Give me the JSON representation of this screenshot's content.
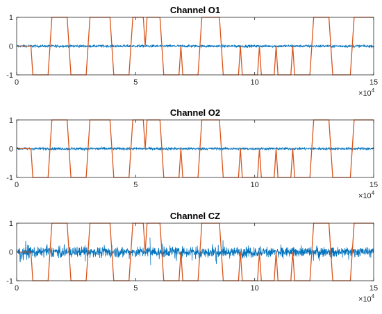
{
  "chart_data": [
    {
      "type": "line",
      "title": "Channel O1",
      "xlim": [
        0,
        15
      ],
      "ylim": [
        -1,
        1
      ],
      "x_ticks": [
        "0",
        "5",
        "10",
        "15"
      ],
      "y_ticks": [
        "1",
        "0",
        "-1"
      ],
      "x_exponent": {
        "base": "10",
        "power": "4"
      },
      "grid": false,
      "series": [
        {
          "color": "#0072BD",
          "noise_amplitude": 0.05,
          "values": [
            0,
            0
          ]
        },
        {
          "color": "#D95319",
          "x_transitions": [
            0,
            0.6,
            1.4,
            2.2,
            3.0,
            4.0,
            4.8,
            5.4,
            6.1,
            6.9,
            7.7,
            8.6,
            9.4,
            10.2,
            10.9,
            11.6,
            12.4,
            13.2,
            14.1,
            15.0
          ],
          "levels": [
            0,
            -1,
            1,
            -1,
            1,
            -1,
            1,
            1,
            -1,
            -1,
            1,
            -1,
            -1,
            -1,
            -1,
            -1,
            1,
            -1,
            1
          ]
        }
      ]
    },
    {
      "type": "line",
      "title": "Channel O2",
      "xlim": [
        0,
        15
      ],
      "ylim": [
        -1,
        1
      ],
      "x_ticks": [
        "0",
        "5",
        "10",
        "15"
      ],
      "y_ticks": [
        "1",
        "0",
        "-1"
      ],
      "x_exponent": {
        "base": "10",
        "power": "4"
      },
      "grid": false,
      "series": [
        {
          "color": "#0072BD",
          "noise_amplitude": 0.05,
          "values": [
            0,
            0
          ]
        },
        {
          "color": "#D95319",
          "x_transitions": [
            0,
            0.6,
            1.4,
            2.2,
            3.0,
            4.0,
            4.8,
            5.4,
            6.1,
            6.9,
            7.7,
            8.6,
            9.4,
            10.2,
            10.9,
            11.6,
            12.4,
            13.2,
            14.1,
            15.0
          ],
          "levels": [
            0,
            -1,
            1,
            -1,
            1,
            -1,
            1,
            1,
            -1,
            -1,
            1,
            -1,
            -1,
            -1,
            -1,
            -1,
            1,
            -1,
            1
          ]
        }
      ]
    },
    {
      "type": "line",
      "title": "Channel CZ",
      "xlim": [
        0,
        15
      ],
      "ylim": [
        -1,
        1
      ],
      "x_ticks": [
        "0",
        "5",
        "10",
        "15"
      ],
      "y_ticks": [
        "1",
        "0",
        "-1"
      ],
      "x_exponent": {
        "base": "10",
        "power": "4"
      },
      "grid": false,
      "series": [
        {
          "color": "#0072BD",
          "noise_amplitude": 0.2,
          "spike_x": 5.6,
          "spike_range": [
            -0.45,
            0.5
          ],
          "values": [
            0,
            0
          ]
        },
        {
          "color": "#D95319",
          "x_transitions": [
            0,
            0.6,
            1.4,
            2.2,
            3.0,
            4.0,
            4.8,
            5.4,
            6.1,
            6.9,
            7.7,
            8.6,
            9.4,
            10.2,
            10.9,
            11.6,
            12.4,
            13.2,
            14.1,
            15.0
          ],
          "levels": [
            0,
            -1,
            1,
            -1,
            1,
            -1,
            1,
            1,
            -1,
            -1,
            1,
            -1,
            -1,
            -1,
            -1,
            -1,
            1,
            -1,
            1
          ]
        }
      ]
    }
  ]
}
